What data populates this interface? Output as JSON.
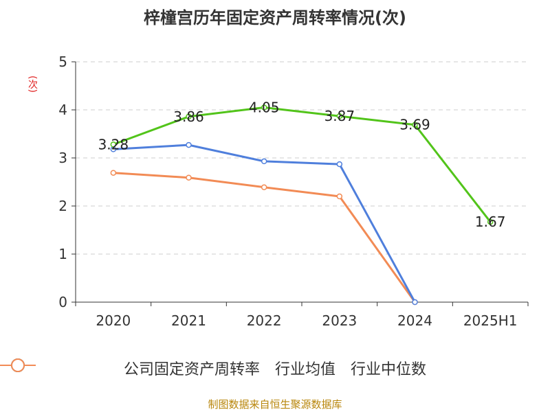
{
  "title": "梓橦宫历年固定资产周转率情况(次)",
  "source": "制图数据来自恒生聚源数据库",
  "chart_data": {
    "type": "line",
    "categories": [
      "2020",
      "2021",
      "2022",
      "2023",
      "2024",
      "2025H1"
    ],
    "ylabel": "(次)",
    "ylim": [
      0,
      5
    ],
    "yticks": [
      0,
      1,
      2,
      3,
      4,
      5
    ],
    "grid": true,
    "legend_position": "bottom",
    "series": [
      {
        "name": "公司固定资产周转率",
        "color": "#52c41a",
        "values": [
          3.28,
          3.86,
          4.05,
          3.87,
          3.69,
          1.67
        ],
        "labels": [
          "3.28",
          "3.86",
          "4.05",
          "3.87",
          "3.69",
          "1.67"
        ]
      },
      {
        "name": "行业均值",
        "color": "#4f7fdc",
        "values": [
          3.18,
          3.27,
          2.93,
          2.87,
          0,
          null
        ]
      },
      {
        "name": "行业中位数",
        "color": "#f28b55",
        "values": [
          2.69,
          2.59,
          2.39,
          2.2,
          0,
          null
        ]
      }
    ]
  }
}
